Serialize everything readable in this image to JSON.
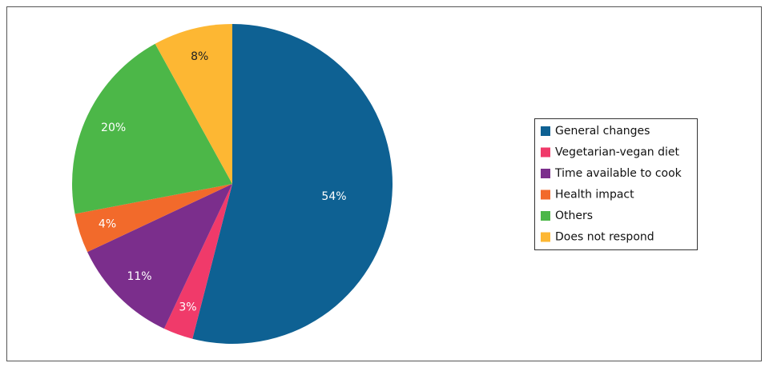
{
  "chart_data": {
    "type": "pie",
    "categories": [
      "General changes",
      "Vegetarian-vegan diet",
      "Time available to cook",
      "Health impact",
      "Others",
      "Does not respond"
    ],
    "values": [
      54,
      3,
      11,
      4,
      20,
      8
    ],
    "value_labels": [
      "54%",
      "3%",
      "11%",
      "4%",
      "20%",
      "8%"
    ],
    "colors": [
      "#0e6193",
      "#f03a6a",
      "#7b2e8c",
      "#f26a2b",
      "#4cb748",
      "#fdb733"
    ],
    "label_colors": [
      "#ffffff",
      "#ffffff",
      "#ffffff",
      "#ffffff",
      "#ffffff",
      "#222222"
    ],
    "legend": "right"
  }
}
